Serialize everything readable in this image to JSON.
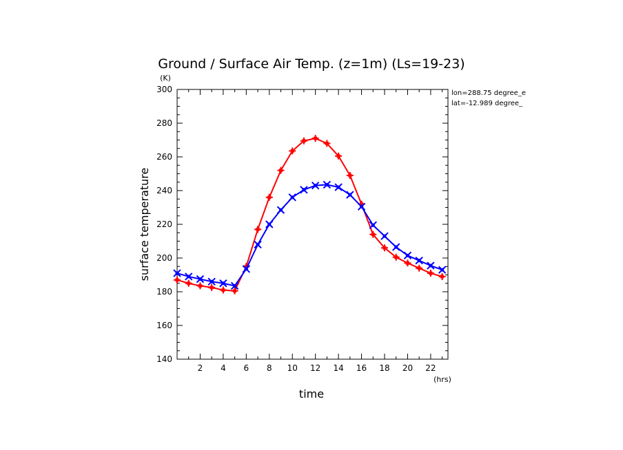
{
  "chart_data": {
    "type": "line",
    "title": "Ground / Surface Air Temp. (z=1m) (Ls=19-23)",
    "xlabel": "time",
    "ylabel": "surface temperature",
    "x_unit": "(hrs)",
    "y_unit": "(K)",
    "xlim": [
      0,
      23.5
    ],
    "ylim": [
      140,
      300
    ],
    "x_ticks": [
      2,
      4,
      6,
      8,
      10,
      12,
      14,
      16,
      18,
      20,
      22
    ],
    "y_ticks": [
      140,
      160,
      180,
      200,
      220,
      240,
      260,
      280,
      300
    ],
    "annotations": [
      "lon=288.75 degree_e",
      "lat=-12.989 degree_"
    ],
    "x": [
      0,
      1,
      2,
      3,
      4,
      5,
      6,
      7,
      8,
      9,
      10,
      11,
      12,
      13,
      14,
      15,
      16,
      17,
      18,
      19,
      20,
      21,
      22,
      23
    ],
    "series": [
      {
        "color": "#ff0000",
        "marker": "plus",
        "values": [
          187,
          185,
          183.5,
          182.5,
          181,
          180.5,
          195,
          217,
          236,
          252,
          263.5,
          269.5,
          271,
          268,
          260.5,
          249,
          232,
          214,
          206,
          200.5,
          197,
          194,
          191,
          189
        ]
      },
      {
        "color": "#0000ff",
        "marker": "cross",
        "values": [
          191,
          189,
          187.5,
          186,
          185,
          183.5,
          193.5,
          208,
          220,
          228.5,
          236,
          240.5,
          243,
          243.5,
          242,
          237.5,
          230.5,
          219.5,
          213,
          206.5,
          201.5,
          198.5,
          195.5,
          193
        ]
      }
    ]
  }
}
